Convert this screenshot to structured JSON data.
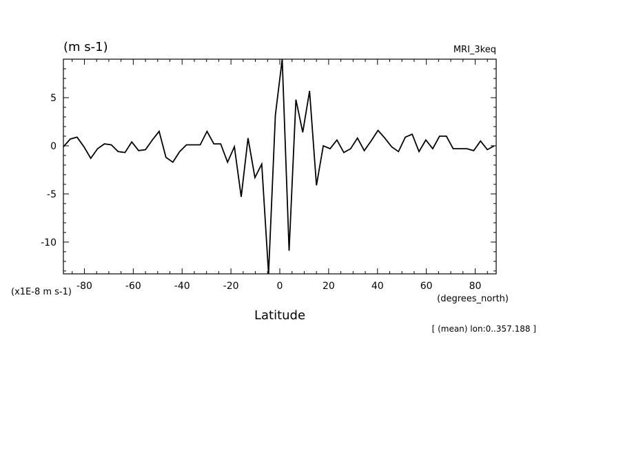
{
  "chart_data": {
    "type": "line",
    "units_label": "(m s-1)",
    "model_label": "MRI_3keq",
    "scale_label": "(x1E-8 m s-1)",
    "xlabel": "Latitude",
    "xunits_label": "(degrees_north)",
    "subtitle": "[ (mean) lon:0..357.188 ]",
    "xlim": [
      -88.6,
      88.6
    ],
    "ylim": [
      -13.3,
      9.0
    ],
    "xticks": [
      -80,
      -60,
      -40,
      -20,
      0,
      20,
      40,
      60,
      80
    ],
    "xtick_labels": [
      "-80",
      "-60",
      "-40",
      "-20",
      "0",
      "20",
      "40",
      "60",
      "80"
    ],
    "yticks": [
      5,
      0,
      -5,
      -10
    ],
    "ytick_labels": [
      "5",
      "0",
      "-5",
      "-10"
    ],
    "grid": false,
    "series": [
      {
        "color": "#000000",
        "x": [
          -88.6,
          -85.8,
          -83.0,
          -80.2,
          -77.4,
          -74.6,
          -71.8,
          -69.0,
          -66.2,
          -63.4,
          -60.6,
          -57.8,
          -55.0,
          -52.2,
          -49.4,
          -46.6,
          -43.8,
          -41.0,
          -38.2,
          -35.4,
          -32.6,
          -29.8,
          -27.0,
          -24.2,
          -21.4,
          -18.6,
          -15.8,
          -13.0,
          -10.2,
          -7.4,
          -4.6,
          -1.8,
          1.0,
          3.8,
          6.6,
          9.4,
          12.2,
          15.0,
          17.8,
          20.6,
          23.4,
          26.2,
          29.0,
          31.8,
          34.6,
          37.4,
          40.2,
          43.0,
          45.8,
          48.6,
          51.4,
          54.2,
          57.0,
          59.8,
          62.6,
          65.4,
          68.2,
          71.0,
          73.8,
          76.6,
          79.4,
          82.2,
          85.0,
          87.8
        ],
        "y": [
          -0.1,
          0.7,
          0.9,
          -0.1,
          -1.3,
          -0.3,
          0.2,
          0.1,
          -0.6,
          -0.7,
          0.4,
          -0.5,
          -0.4,
          0.6,
          1.5,
          -1.2,
          -1.7,
          -0.6,
          0.1,
          0.1,
          0.1,
          1.5,
          0.2,
          0.2,
          -1.7,
          -0.1,
          -5.3,
          0.8,
          -3.3,
          -1.9,
          -13.3,
          3.2,
          9.0,
          -10.9,
          4.8,
          1.4,
          5.7,
          -4.1,
          0.0,
          -0.3,
          0.6,
          -0.7,
          -0.3,
          0.8,
          -0.5,
          0.5,
          1.6,
          0.8,
          -0.1,
          -0.6,
          0.9,
          1.2,
          -0.6,
          0.6,
          -0.3,
          1.0,
          1.0,
          -0.3,
          -0.3,
          -0.3,
          -0.5,
          0.5,
          -0.4,
          0.0
        ]
      }
    ]
  }
}
